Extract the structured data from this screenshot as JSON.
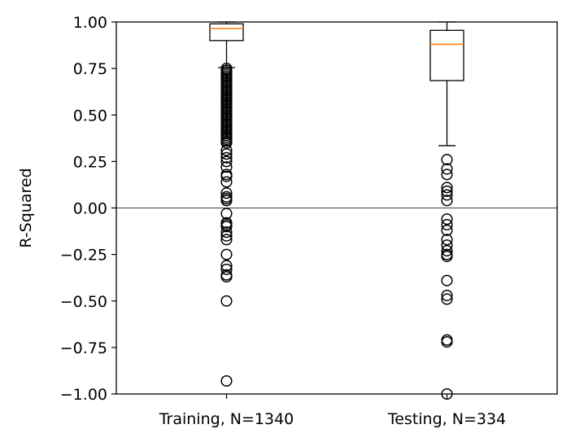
{
  "chart_data": {
    "type": "box",
    "title": "",
    "xlabel": "",
    "ylabel": "R-Squared",
    "ylim": [
      -1.0,
      1.0
    ],
    "yticks": [
      1.0,
      0.75,
      0.5,
      0.25,
      0.0,
      -0.25,
      -0.5,
      -0.75,
      -1.0
    ],
    "ytick_labels": [
      "1.00",
      "0.75",
      "0.50",
      "0.25",
      "0.00",
      "−0.25",
      "−0.50",
      "−0.75",
      "−1.00"
    ],
    "reference_line_y": 0.0,
    "categories": [
      "Training, N=1340",
      "Testing, N=334"
    ],
    "boxes": [
      {
        "label": "Training, N=1340",
        "whisker_low": 0.755,
        "q1": 0.9,
        "median": 0.965,
        "q3": 0.99,
        "whisker_high": 1.0,
        "outliers": [
          0.75,
          0.74,
          0.73,
          0.72,
          0.71,
          0.7,
          0.69,
          0.68,
          0.67,
          0.66,
          0.65,
          0.64,
          0.63,
          0.62,
          0.61,
          0.6,
          0.59,
          0.58,
          0.57,
          0.56,
          0.55,
          0.54,
          0.53,
          0.52,
          0.51,
          0.5,
          0.49,
          0.48,
          0.47,
          0.46,
          0.45,
          0.44,
          0.43,
          0.42,
          0.41,
          0.4,
          0.39,
          0.38,
          0.37,
          0.36,
          0.35,
          0.31,
          0.29,
          0.27,
          0.25,
          0.22,
          0.18,
          0.17,
          0.14,
          0.08,
          0.06,
          0.05,
          0.04,
          -0.03,
          -0.08,
          -0.09,
          -0.1,
          -0.13,
          -0.15,
          -0.17,
          -0.25,
          -0.31,
          -0.33,
          -0.36,
          -0.37,
          -0.5,
          -0.93
        ]
      },
      {
        "label": "Testing, N=334",
        "whisker_low": 0.335,
        "q1": 0.685,
        "median": 0.88,
        "q3": 0.955,
        "whisker_high": 1.0,
        "outliers": [
          0.26,
          0.21,
          0.18,
          0.11,
          0.09,
          0.07,
          0.04,
          -0.06,
          -0.09,
          -0.12,
          -0.17,
          -0.2,
          -0.23,
          -0.25,
          -0.26,
          -0.39,
          -0.47,
          -0.49,
          -0.71,
          -0.72,
          -1.0
        ]
      }
    ],
    "colors": {
      "box": "#000000",
      "median": "#ff7f0e",
      "reference_line": "#000000"
    }
  }
}
